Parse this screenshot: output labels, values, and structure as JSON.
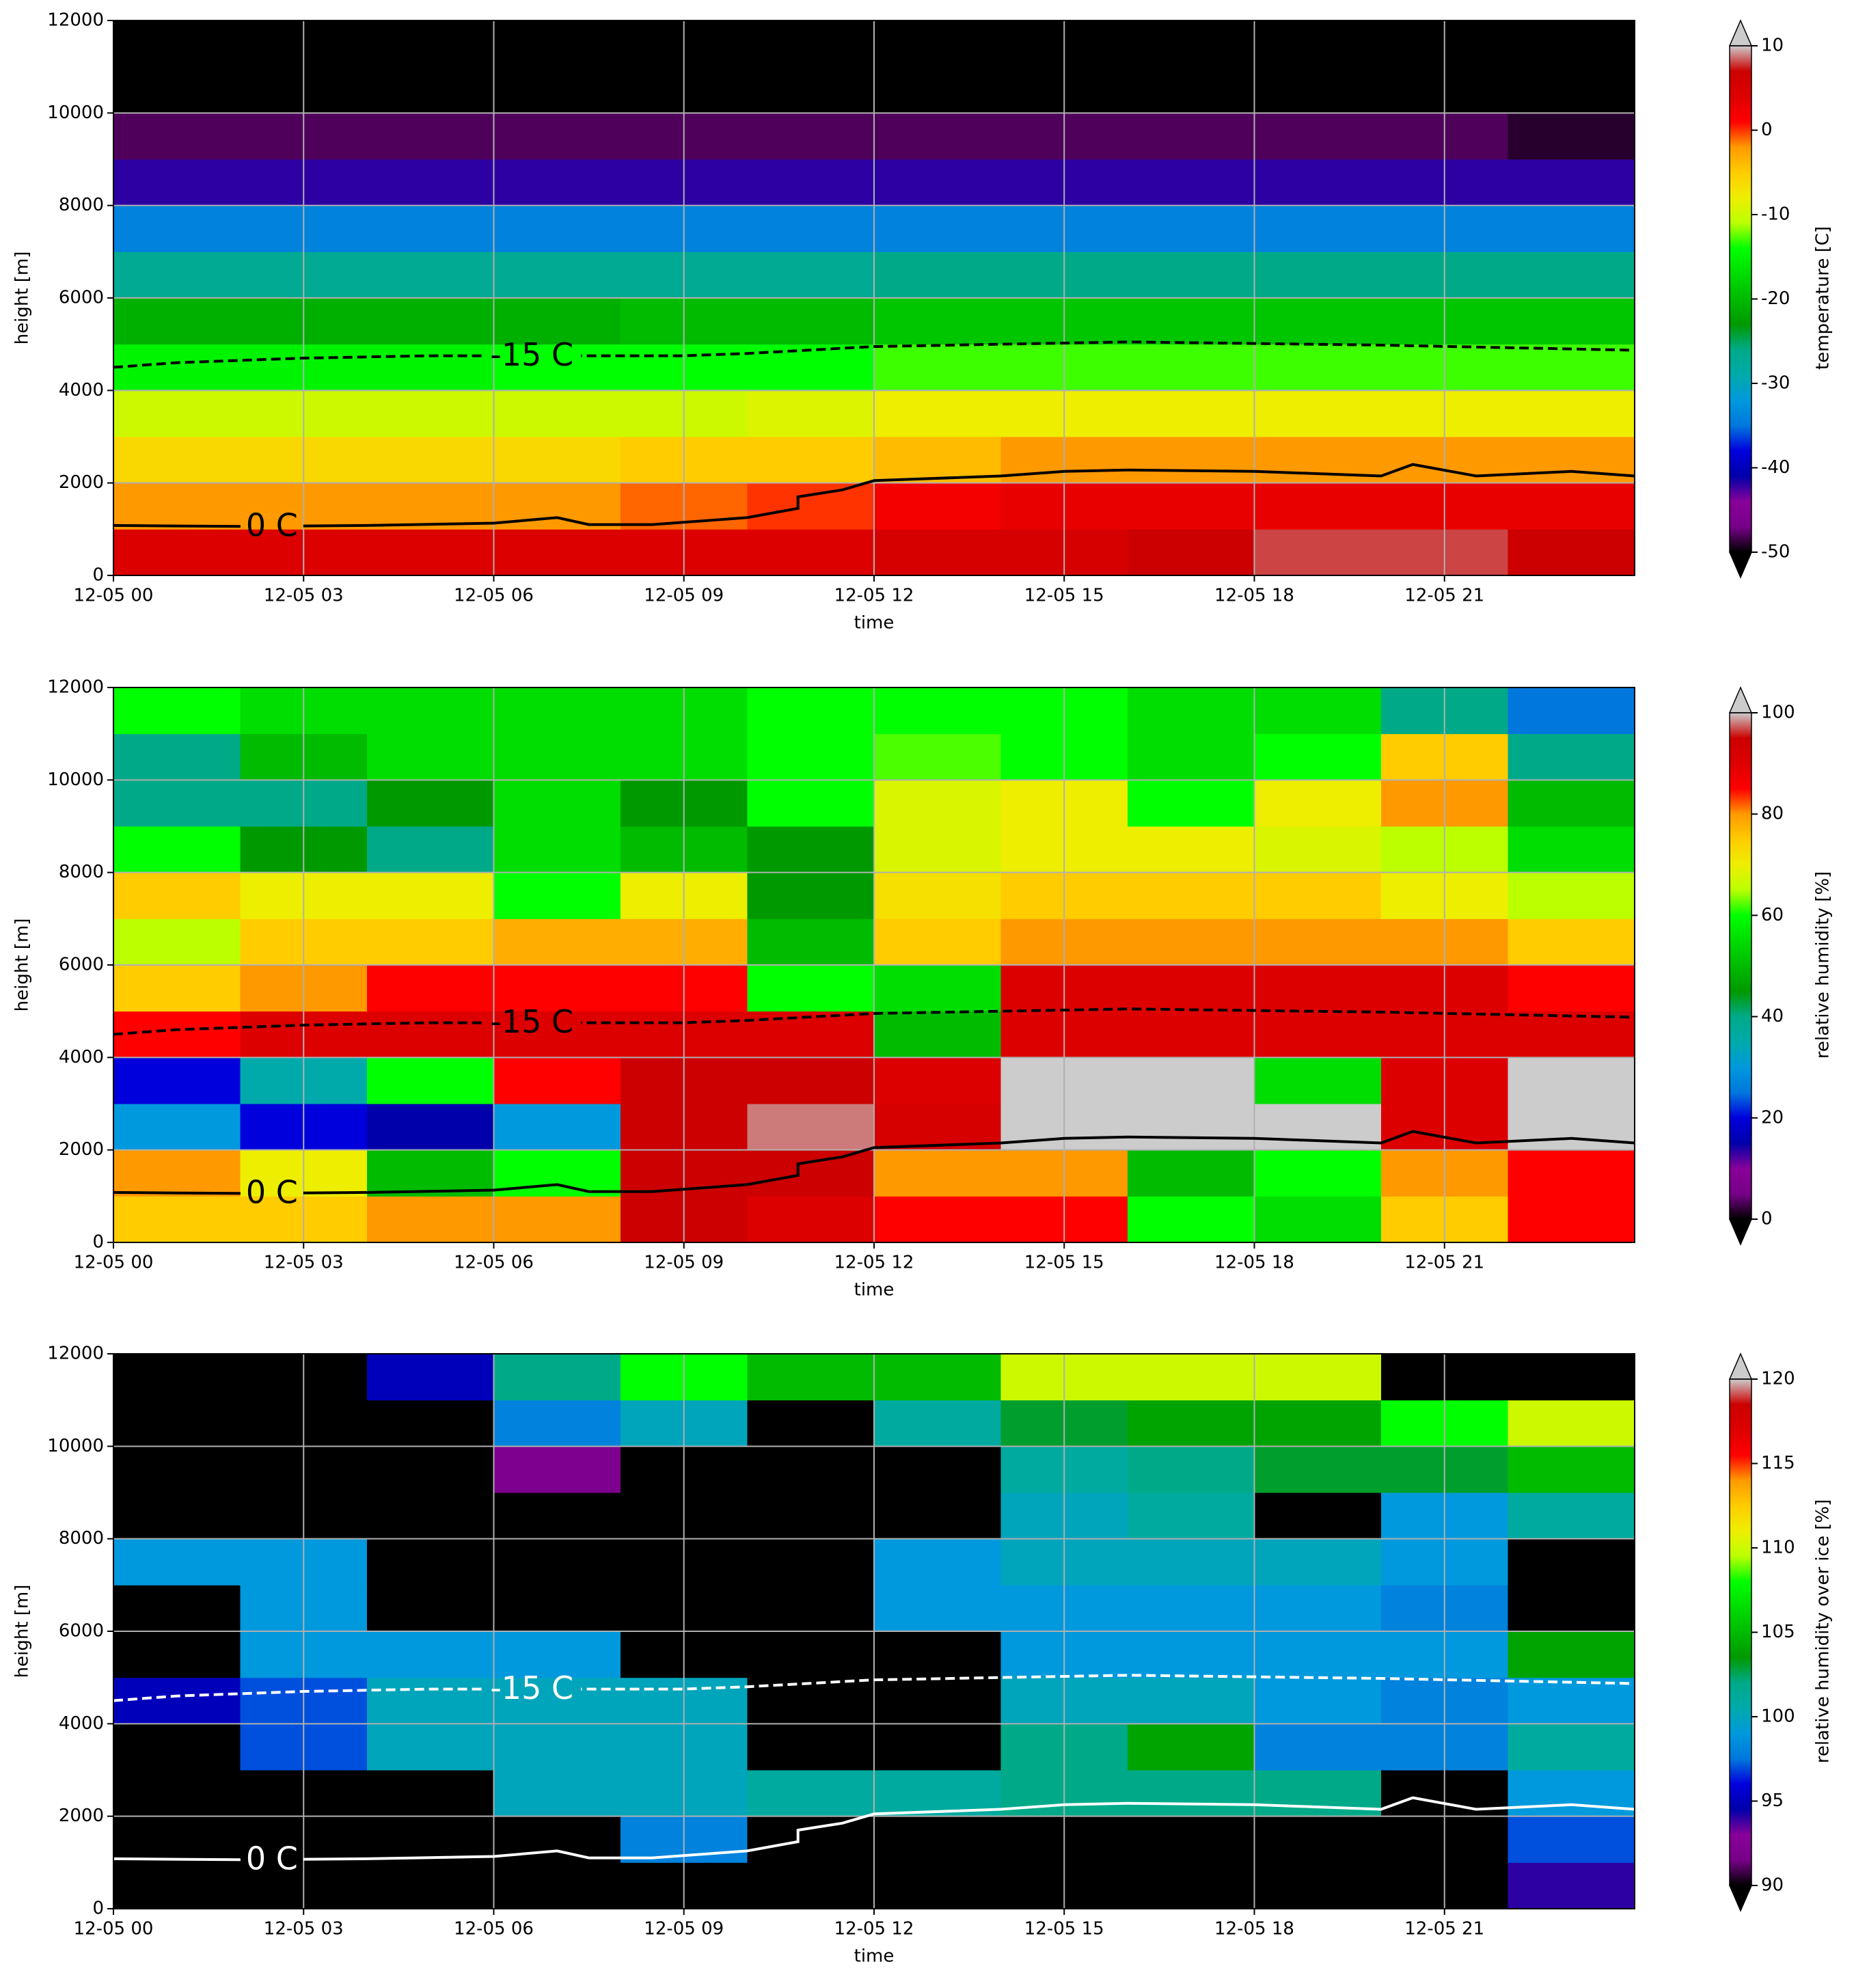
{
  "chart_data": [
    {
      "type": "heatmap",
      "xlabel": "time",
      "ylabel": "height [m]",
      "colorbar_label": "temperature [C]",
      "xlim": [
        0,
        24
      ],
      "ylim": [
        0,
        12000
      ],
      "grid": true,
      "xticks": [
        {
          "value": 0,
          "label": "12-05 00"
        },
        {
          "value": 3,
          "label": "12-05 03"
        },
        {
          "value": 6,
          "label": "12-05 06"
        },
        {
          "value": 9,
          "label": "12-05 09"
        },
        {
          "value": 12,
          "label": "12-05 12"
        },
        {
          "value": 15,
          "label": "12-05 15"
        },
        {
          "value": 18,
          "label": "12-05 18"
        },
        {
          "value": 21,
          "label": "12-05 21"
        }
      ],
      "yticks": [
        0,
        2000,
        4000,
        6000,
        8000,
        10000,
        12000
      ],
      "xbins": [
        0,
        2,
        4,
        6,
        8,
        10,
        12,
        14,
        16,
        18,
        20,
        22,
        24
      ],
      "ybins": [
        0,
        1000,
        2000,
        3000,
        4000,
        5000,
        6000,
        7000,
        8000,
        9000,
        10000,
        11000,
        12000
      ],
      "z": [
        [
          4,
          4,
          4,
          4,
          4,
          4,
          5,
          5,
          7,
          8,
          8,
          7
        ],
        [
          -2,
          -2,
          -2,
          -2,
          -1,
          0,
          2,
          3,
          3,
          3,
          3,
          3
        ],
        [
          -6,
          -6,
          -6,
          -6,
          -5,
          -5,
          -4,
          -2,
          -2,
          -2,
          -2,
          -2
        ],
        [
          -10,
          -10,
          -10,
          -10,
          -10,
          -9,
          -8,
          -8,
          -8,
          -8,
          -8,
          -8
        ],
        [
          -15,
          -15,
          -15,
          -14,
          -14,
          -14,
          -13,
          -13,
          -13,
          -13,
          -13,
          -13
        ],
        [
          -21,
          -21,
          -21,
          -21,
          -20,
          -20,
          -19,
          -19,
          -19,
          -19,
          -19,
          -19
        ],
        [
          -27,
          -27,
          -27,
          -27,
          -27,
          -27,
          -26,
          -26,
          -26,
          -26,
          -26,
          -26
        ],
        [
          -34,
          -34,
          -34,
          -34,
          -34,
          -34,
          -34,
          -34,
          -34,
          -34,
          -34,
          -34
        ],
        [
          -42,
          -42,
          -42,
          -42,
          -42,
          -42,
          -42,
          -42,
          -42,
          -42,
          -42,
          -42
        ],
        [
          -48,
          -48,
          -48,
          -48,
          -48,
          -48,
          -48,
          -48,
          -48,
          -48,
          -48,
          -49
        ],
        [
          -55,
          -55,
          -55,
          -55,
          -55,
          -55,
          -55,
          -55,
          -55,
          -55,
          -55,
          -55
        ],
        [
          -55,
          -55,
          -55,
          -55,
          -55,
          -55,
          -55,
          -55,
          -55,
          -55,
          -55,
          -55
        ]
      ],
      "clim": [
        -50,
        10
      ],
      "cticks": [
        -50,
        -40,
        -30,
        -20,
        -10,
        0,
        10
      ],
      "colormap": [
        "#000000",
        "#770088",
        "#880099",
        "#0000aa",
        "#0000dd",
        "#0077dd",
        "#0099dd",
        "#00aaaa",
        "#00aa88",
        "#009900",
        "#00bb00",
        "#00dd00",
        "#00ff00",
        "#bbff00",
        "#eeee00",
        "#ffcc00",
        "#ff9900",
        "#ff0000",
        "#dd0000",
        "#cc0000",
        "#cccccc"
      ],
      "under_color": "#000000",
      "over_color": "#cccccc",
      "contours": [
        {
          "label": "0 C",
          "color": "#000000",
          "dash": false,
          "x": [
            0,
            2,
            4,
            6,
            7,
            7.5,
            8.5,
            10,
            10.8,
            10.8,
            11.5,
            12,
            14,
            15,
            16,
            18,
            20,
            20.5,
            21.5,
            23,
            24
          ],
          "values": [
            1080,
            1060,
            1080,
            1130,
            1250,
            1100,
            1100,
            1250,
            1450,
            1700,
            1850,
            2050,
            2150,
            2250,
            2280,
            2250,
            2150,
            2400,
            2150,
            2250,
            2150
          ]
        },
        {
          "label": "-15 C",
          "color": "#000000",
          "dash": true,
          "x": [
            0,
            1,
            3,
            5,
            7,
            9,
            10,
            12,
            16,
            20,
            24
          ],
          "values": [
            4500,
            4600,
            4700,
            4750,
            4750,
            4750,
            4800,
            4950,
            5050,
            4980,
            4870
          ]
        }
      ]
    },
    {
      "type": "heatmap",
      "xlabel": "time",
      "ylabel": "height [m]",
      "colorbar_label": "relative humidity [%]",
      "xlim": [
        0,
        24
      ],
      "ylim": [
        0,
        12000
      ],
      "grid": true,
      "xticks": [
        {
          "value": 0,
          "label": "12-05 00"
        },
        {
          "value": 3,
          "label": "12-05 03"
        },
        {
          "value": 6,
          "label": "12-05 06"
        },
        {
          "value": 9,
          "label": "12-05 09"
        },
        {
          "value": 12,
          "label": "12-05 12"
        },
        {
          "value": 15,
          "label": "12-05 15"
        },
        {
          "value": 18,
          "label": "12-05 18"
        },
        {
          "value": 21,
          "label": "12-05 21"
        }
      ],
      "yticks": [
        0,
        2000,
        4000,
        6000,
        8000,
        10000,
        12000
      ],
      "xbins": [
        0,
        2,
        4,
        6,
        8,
        10,
        12,
        14,
        16,
        18,
        20,
        22,
        24
      ],
      "ybins": [
        0,
        1000,
        2000,
        3000,
        4000,
        5000,
        6000,
        7000,
        8000,
        9000,
        10000,
        11000,
        12000
      ],
      "z": [
        [
          75,
          75,
          80,
          80,
          95,
          90,
          85,
          85,
          60,
          55,
          75,
          85
        ],
        [
          80,
          70,
          50,
          60,
          95,
          95,
          80,
          80,
          50,
          60,
          80,
          85
        ],
        [
          30,
          20,
          15,
          30,
          95,
          98,
          92,
          100,
          100,
          100,
          90,
          100
        ],
        [
          20,
          35,
          60,
          85,
          95,
          95,
          90,
          100,
          100,
          55,
          90,
          100
        ],
        [
          85,
          90,
          90,
          90,
          90,
          90,
          50,
          90,
          90,
          90,
          90,
          90
        ],
        [
          75,
          80,
          85,
          85,
          85,
          60,
          55,
          90,
          90,
          90,
          90,
          85
        ],
        [
          65,
          75,
          75,
          78,
          78,
          50,
          75,
          80,
          80,
          80,
          80,
          75
        ],
        [
          75,
          70,
          70,
          60,
          70,
          45,
          72,
          75,
          75,
          75,
          70,
          65
        ],
        [
          60,
          45,
          40,
          55,
          50,
          45,
          68,
          70,
          70,
          68,
          65,
          55
        ],
        [
          40,
          40,
          45,
          55,
          45,
          60,
          68,
          70,
          60,
          70,
          80,
          50
        ],
        [
          40,
          50,
          55,
          55,
          55,
          60,
          62,
          60,
          55,
          60,
          75,
          40
        ],
        [
          60,
          55,
          55,
          55,
          55,
          60,
          60,
          60,
          55,
          55,
          40,
          25
        ]
      ],
      "clim": [
        0,
        100
      ],
      "cticks": [
        0,
        20,
        40,
        60,
        80,
        100
      ],
      "colormap": [
        "#000000",
        "#770088",
        "#880099",
        "#0000aa",
        "#0000dd",
        "#0077dd",
        "#0099dd",
        "#00aaaa",
        "#00aa88",
        "#009900",
        "#00bb00",
        "#00dd00",
        "#00ff00",
        "#bbff00",
        "#eeee00",
        "#ffcc00",
        "#ff9900",
        "#ff0000",
        "#dd0000",
        "#cc0000",
        "#cccccc"
      ],
      "under_color": "#000000",
      "over_color": "#cccccc",
      "contours": [
        {
          "label": "0 C",
          "color": "#000000",
          "dash": false,
          "x": [
            0,
            2,
            4,
            6,
            7,
            7.5,
            8.5,
            10,
            10.8,
            10.8,
            11.5,
            12,
            14,
            15,
            16,
            18,
            20,
            20.5,
            21.5,
            23,
            24
          ],
          "values": [
            1080,
            1060,
            1080,
            1130,
            1250,
            1100,
            1100,
            1250,
            1450,
            1700,
            1850,
            2050,
            2150,
            2250,
            2280,
            2250,
            2150,
            2400,
            2150,
            2250,
            2150
          ]
        },
        {
          "label": "-15 C",
          "color": "#000000",
          "dash": true,
          "x": [
            0,
            1,
            3,
            5,
            7,
            9,
            10,
            12,
            16,
            20,
            24
          ],
          "values": [
            4500,
            4600,
            4700,
            4750,
            4750,
            4750,
            4800,
            4950,
            5050,
            4980,
            4870
          ]
        }
      ]
    },
    {
      "type": "heatmap",
      "xlabel": "time",
      "ylabel": "height [m]",
      "colorbar_label": "relative humidity over ice [%]",
      "xlim": [
        0,
        24
      ],
      "ylim": [
        0,
        12000
      ],
      "grid": true,
      "xticks": [
        {
          "value": 0,
          "label": "12-05 00"
        },
        {
          "value": 3,
          "label": "12-05 03"
        },
        {
          "value": 6,
          "label": "12-05 06"
        },
        {
          "value": 9,
          "label": "12-05 09"
        },
        {
          "value": 12,
          "label": "12-05 12"
        },
        {
          "value": 15,
          "label": "12-05 15"
        },
        {
          "value": 18,
          "label": "12-05 18"
        },
        {
          "value": 21,
          "label": "12-05 21"
        }
      ],
      "yticks": [
        0,
        2000,
        4000,
        6000,
        8000,
        10000,
        12000
      ],
      "xbins": [
        0,
        2,
        4,
        6,
        8,
        10,
        12,
        14,
        16,
        18,
        20,
        22,
        24
      ],
      "ybins": [
        0,
        1000,
        2000,
        3000,
        4000,
        5000,
        6000,
        7000,
        8000,
        9000,
        10000,
        11000,
        12000
      ],
      "z": [
        [
          85,
          85,
          85,
          85,
          85,
          85,
          85,
          85,
          85,
          85,
          85,
          94
        ],
        [
          85,
          85,
          85,
          85,
          98,
          85,
          85,
          85,
          85,
          85,
          85,
          97
        ],
        [
          85,
          85,
          85,
          100,
          100,
          101,
          101,
          102,
          102,
          102,
          85,
          99
        ],
        [
          85,
          97,
          100,
          100,
          100,
          85,
          85,
          102,
          104,
          98,
          98,
          101
        ],
        [
          95,
          97,
          100,
          100,
          100,
          85,
          85,
          100,
          100,
          99,
          98,
          99
        ],
        [
          85,
          99,
          99,
          99,
          85,
          85,
          85,
          99,
          99,
          99,
          99,
          104
        ],
        [
          85,
          99,
          85,
          85,
          85,
          85,
          99,
          99,
          99,
          99,
          98,
          85
        ],
        [
          99,
          99,
          85,
          85,
          85,
          85,
          99,
          100,
          100,
          100,
          99,
          85
        ],
        [
          85,
          85,
          85,
          85,
          85,
          85,
          85,
          100,
          101,
          85,
          99,
          101
        ],
        [
          85,
          85,
          85,
          92,
          85,
          85,
          85,
          101,
          102,
          103,
          103,
          105
        ],
        [
          85,
          85,
          85,
          98,
          100,
          85,
          101,
          103,
          104,
          104,
          108,
          110
        ],
        [
          85,
          85,
          95,
          102,
          108,
          105,
          105,
          110,
          110,
          110,
          85,
          85
        ]
      ],
      "clim": [
        90,
        120
      ],
      "cticks": [
        90,
        95,
        100,
        105,
        110,
        115,
        120
      ],
      "colormap": [
        "#000000",
        "#770088",
        "#880099",
        "#0000aa",
        "#0000dd",
        "#0077dd",
        "#0099dd",
        "#00aaaa",
        "#00aa88",
        "#009900",
        "#00bb00",
        "#00dd00",
        "#00ff00",
        "#bbff00",
        "#eeee00",
        "#ffcc00",
        "#ff9900",
        "#ff0000",
        "#dd0000",
        "#cc0000",
        "#cccccc"
      ],
      "under_color": "#000000",
      "over_color": "#cccccc",
      "contours": [
        {
          "label": "0 C",
          "color": "#ffffff",
          "dash": false,
          "x": [
            0,
            2,
            4,
            6,
            7,
            7.5,
            8.5,
            10,
            10.8,
            10.8,
            11.5,
            12,
            14,
            15,
            16,
            18,
            20,
            20.5,
            21.5,
            23,
            24
          ],
          "values": [
            1080,
            1060,
            1080,
            1130,
            1250,
            1100,
            1100,
            1250,
            1450,
            1700,
            1850,
            2050,
            2150,
            2250,
            2280,
            2250,
            2150,
            2400,
            2150,
            2250,
            2150
          ]
        },
        {
          "label": "-15 C",
          "color": "#ffffff",
          "dash": true,
          "x": [
            0,
            1,
            3,
            5,
            7,
            9,
            10,
            12,
            16,
            20,
            24
          ],
          "values": [
            4500,
            4600,
            4700,
            4750,
            4750,
            4750,
            4800,
            4950,
            5050,
            4980,
            4870
          ]
        }
      ]
    }
  ]
}
